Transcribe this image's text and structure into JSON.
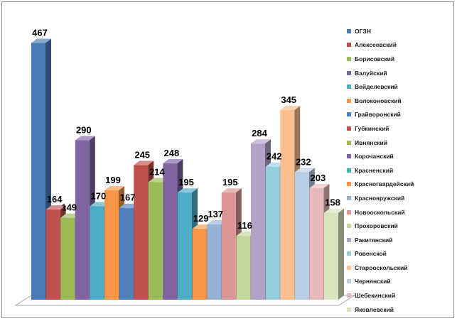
{
  "chart_data": {
    "type": "bar",
    "style": "3d-column",
    "categories": [
      "ОГЗН",
      "Алексеевский",
      "Борисовский",
      "Валуйский",
      "Вейделевский",
      "Волоконовский",
      "Грайворонский",
      "Губкинский",
      "Ивнянский",
      "Корочанский",
      "Красненский",
      "Красногвардейский",
      "Краснояружский",
      "Новооскольский",
      "Прохоровский",
      "Ракитянский",
      "Ровенской",
      "Старооскольский",
      "Чернянский",
      "Шебекинский",
      "Яковлевский"
    ],
    "values": [
      467,
      164,
      149,
      290,
      170,
      199,
      167,
      245,
      214,
      248,
      195,
      129,
      137,
      195,
      116,
      284,
      242,
      345,
      232,
      203,
      158
    ],
    "data_labels": [
      "467",
      "164",
      "149",
      "290",
      "170",
      "199",
      "167",
      "245",
      "214",
      "248",
      "195",
      "129",
      "137",
      "195",
      "116",
      "284",
      "242",
      "345",
      "232",
      "203",
      "158"
    ],
    "colors": [
      "#4a7bb7",
      "#c0504d",
      "#9bbb59",
      "#8064a2",
      "#4bacc6",
      "#f79646",
      "#4f81bd",
      "#c0504d",
      "#9bbb59",
      "#8064a2",
      "#4bacc6",
      "#f79646",
      "#95b3d7",
      "#d99694",
      "#c3d69b",
      "#b3a2c7",
      "#93cddd",
      "#fac090",
      "#b9cde5",
      "#e6b9b8",
      "#d7e4bd"
    ],
    "ylim": [
      0,
      500
    ],
    "grid": false,
    "legend_position": "right"
  }
}
